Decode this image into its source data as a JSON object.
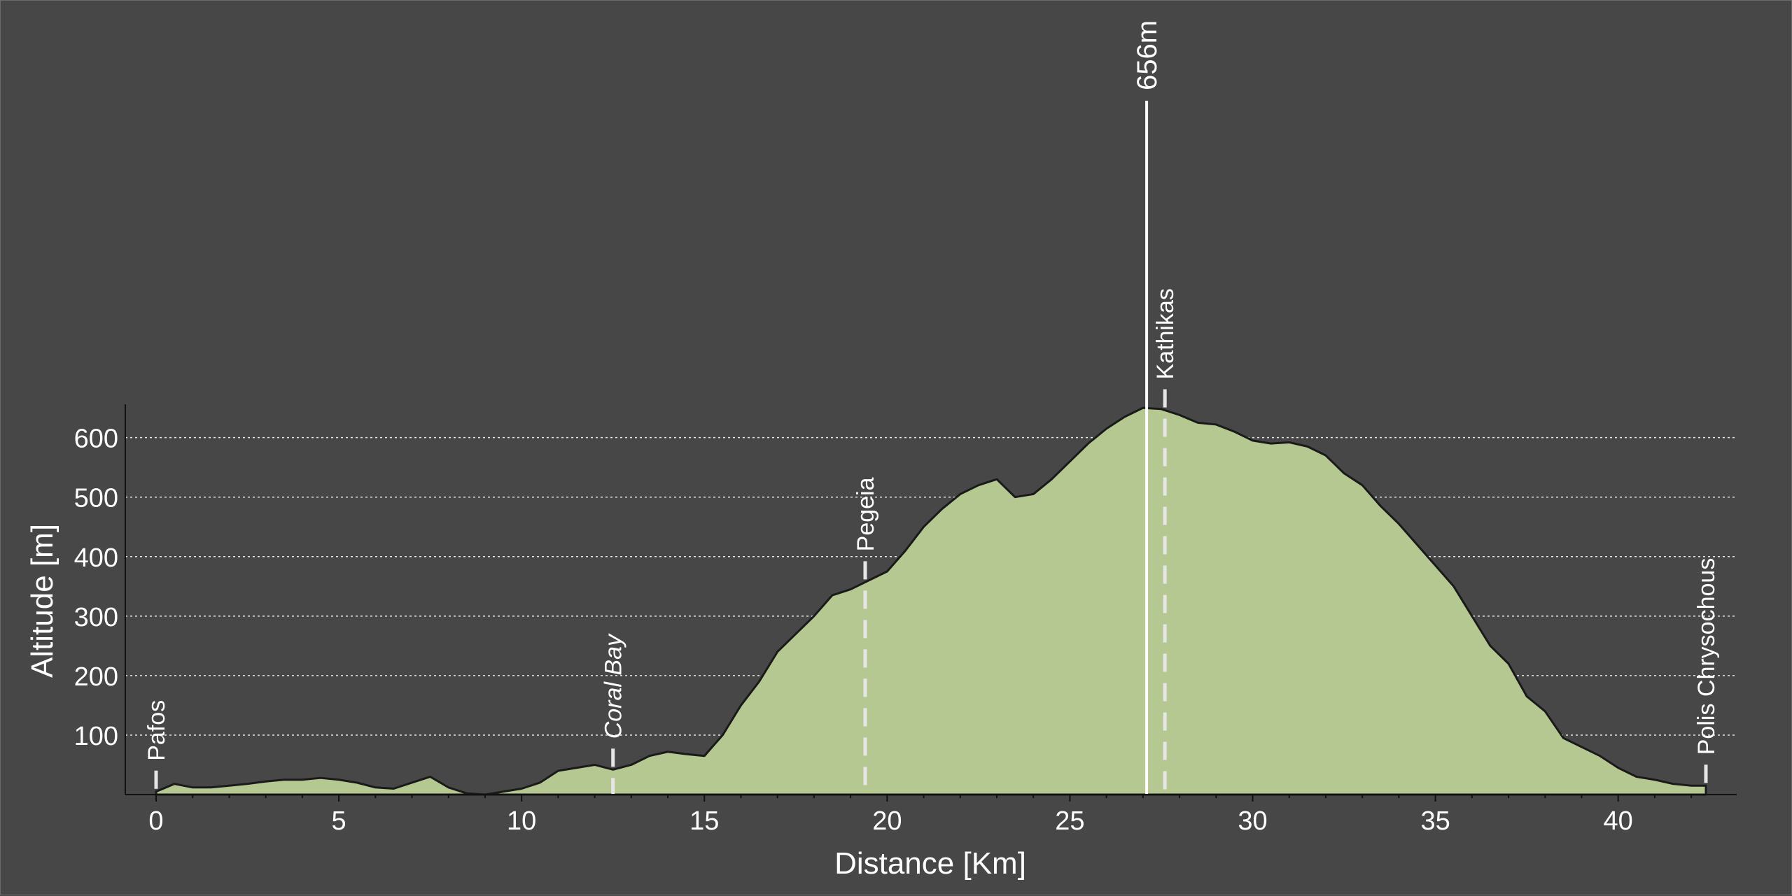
{
  "chart_data": {
    "type": "area",
    "xlabel": "Distance [Km]",
    "ylabel": "Altitude [m]",
    "xlim": [
      0,
      42.4
    ],
    "ylim": [
      0,
      656
    ],
    "x_ticks": [
      0,
      5,
      10,
      15,
      20,
      25,
      30,
      35,
      40
    ],
    "y_ticks": [
      100,
      200,
      300,
      400,
      500,
      600
    ],
    "grid": "horizontal dotted",
    "fill_color": "#b5c892",
    "outline_color": "#1a1a1a",
    "background_color": "#474747",
    "peak": {
      "x": 27.1,
      "y": 656,
      "label": "656m"
    },
    "waypoints": [
      {
        "name": "Pafos",
        "x": 0,
        "italic": false
      },
      {
        "name": "Coral Bay",
        "x": 12.5,
        "italic": true
      },
      {
        "name": "Pegeia",
        "x": 19.4,
        "italic": false
      },
      {
        "name": "Kathikas",
        "x": 27.6,
        "italic": false
      },
      {
        "name": "Polis Chrysochous",
        "x": 42.4,
        "italic": false
      }
    ],
    "series": [
      {
        "x": [
          0,
          0.5,
          1,
          1.5,
          2,
          2.5,
          3,
          3.5,
          4,
          4.5,
          5,
          5.5,
          6,
          6.5,
          7,
          7.5,
          8,
          8.5,
          9,
          9.5,
          10,
          10.5,
          11,
          11.5,
          12,
          12.5,
          13,
          13.5,
          14,
          14.5,
          15,
          15.5,
          16,
          16.5,
          17,
          17.5,
          18,
          18.5,
          19,
          19.5,
          20,
          20.5,
          21,
          21.5,
          22,
          22.5,
          23,
          23.5,
          24,
          24.5,
          25,
          25.5,
          26,
          26.5,
          27,
          27.5,
          28,
          28.5,
          29,
          29.5,
          30,
          30.5,
          31,
          31.5,
          32,
          32.5,
          33,
          33.5,
          34,
          34.5,
          35,
          35.5,
          36,
          36.5,
          37,
          37.5,
          38,
          38.5,
          39,
          39.5,
          40,
          40.5,
          41,
          41.5,
          42,
          42.4
        ],
        "y": [
          5,
          18,
          12,
          12,
          15,
          18,
          22,
          25,
          25,
          28,
          25,
          20,
          12,
          10,
          20,
          30,
          12,
          2,
          0,
          5,
          10,
          20,
          40,
          45,
          50,
          42,
          50,
          65,
          72,
          68,
          65,
          100,
          150,
          190,
          240,
          270,
          300,
          335,
          345,
          360,
          375,
          410,
          450,
          480,
          505,
          520,
          530,
          500,
          505,
          530,
          560,
          590,
          615,
          635,
          650,
          648,
          638,
          625,
          622,
          610,
          595,
          590,
          592,
          585,
          570,
          540,
          520,
          485,
          455,
          420,
          385,
          350,
          300,
          250,
          220,
          165,
          140,
          95,
          80,
          65,
          45,
          30,
          25,
          18,
          15,
          15
        ]
      }
    ]
  }
}
